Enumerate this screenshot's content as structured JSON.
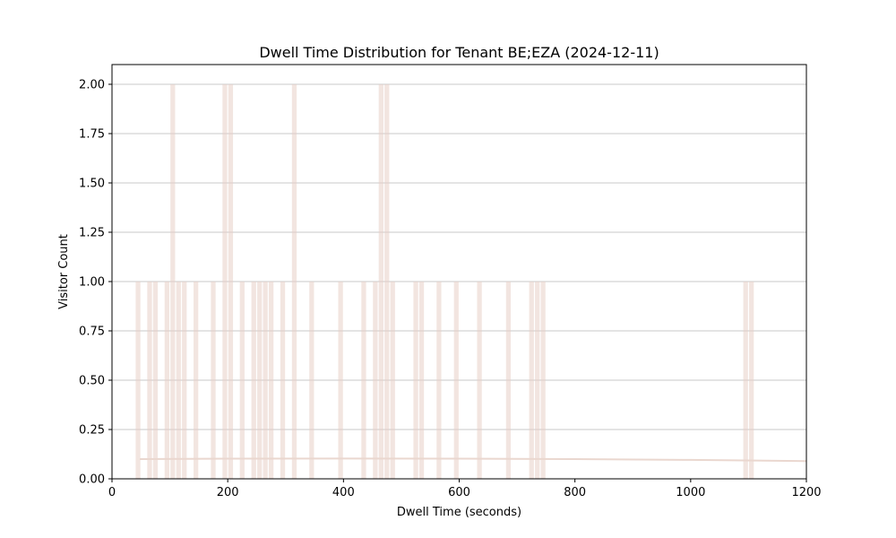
{
  "chart_data": {
    "type": "bar",
    "title": "Dwell Time Distribution for Tenant BE;EZA (2024-12-11)",
    "xlabel": "Dwell Time (seconds)",
    "ylabel": "Visitor Count",
    "xlim": [
      0,
      1200
    ],
    "ylim": [
      0,
      2.1
    ],
    "x_ticks": [
      0,
      200,
      400,
      600,
      800,
      1000,
      1200
    ],
    "x_tick_labels": [
      "0",
      "200",
      "400",
      "600",
      "800",
      "1000",
      "1200"
    ],
    "y_ticks": [
      0,
      0.25,
      0.5,
      0.75,
      1.0,
      1.25,
      1.5,
      1.75,
      2.0
    ],
    "y_tick_labels": [
      "0.00",
      "0.25",
      "0.50",
      "0.75",
      "1.00",
      "1.25",
      "1.50",
      "1.75",
      "2.00"
    ],
    "grid": {
      "y": true,
      "x": false
    },
    "bar_color": "#e8cfc7",
    "grid_color": "#c8c8c8",
    "curve_color": "#ead7cf",
    "bins": [
      {
        "start": 40,
        "end": 50,
        "count": 1
      },
      {
        "start": 60,
        "end": 70,
        "count": 1
      },
      {
        "start": 70,
        "end": 80,
        "count": 1
      },
      {
        "start": 90,
        "end": 100,
        "count": 1
      },
      {
        "start": 100,
        "end": 110,
        "count": 2
      },
      {
        "start": 110,
        "end": 120,
        "count": 1
      },
      {
        "start": 120,
        "end": 130,
        "count": 1
      },
      {
        "start": 140,
        "end": 150,
        "count": 1
      },
      {
        "start": 170,
        "end": 180,
        "count": 1
      },
      {
        "start": 190,
        "end": 200,
        "count": 2
      },
      {
        "start": 200,
        "end": 210,
        "count": 2
      },
      {
        "start": 220,
        "end": 230,
        "count": 1
      },
      {
        "start": 240,
        "end": 250,
        "count": 1
      },
      {
        "start": 250,
        "end": 260,
        "count": 1
      },
      {
        "start": 260,
        "end": 270,
        "count": 1
      },
      {
        "start": 270,
        "end": 280,
        "count": 1
      },
      {
        "start": 290,
        "end": 300,
        "count": 1
      },
      {
        "start": 310,
        "end": 320,
        "count": 2
      },
      {
        "start": 340,
        "end": 350,
        "count": 1
      },
      {
        "start": 390,
        "end": 400,
        "count": 1
      },
      {
        "start": 430,
        "end": 440,
        "count": 1
      },
      {
        "start": 450,
        "end": 460,
        "count": 1
      },
      {
        "start": 460,
        "end": 470,
        "count": 2
      },
      {
        "start": 470,
        "end": 480,
        "count": 2
      },
      {
        "start": 480,
        "end": 490,
        "count": 1
      },
      {
        "start": 520,
        "end": 530,
        "count": 1
      },
      {
        "start": 530,
        "end": 540,
        "count": 1
      },
      {
        "start": 560,
        "end": 570,
        "count": 1
      },
      {
        "start": 590,
        "end": 600,
        "count": 1
      },
      {
        "start": 630,
        "end": 640,
        "count": 1
      },
      {
        "start": 680,
        "end": 690,
        "count": 1
      },
      {
        "start": 720,
        "end": 730,
        "count": 1
      },
      {
        "start": 730,
        "end": 740,
        "count": 1
      },
      {
        "start": 740,
        "end": 750,
        "count": 1
      },
      {
        "start": 1090,
        "end": 1100,
        "count": 1
      },
      {
        "start": 1100,
        "end": 1110,
        "count": 1
      }
    ],
    "density_curve": {
      "x": [
        48,
        200,
        400,
        600,
        800,
        1000,
        1200
      ],
      "y": [
        0.1,
        0.102,
        0.103,
        0.102,
        0.1,
        0.096,
        0.09
      ]
    }
  }
}
